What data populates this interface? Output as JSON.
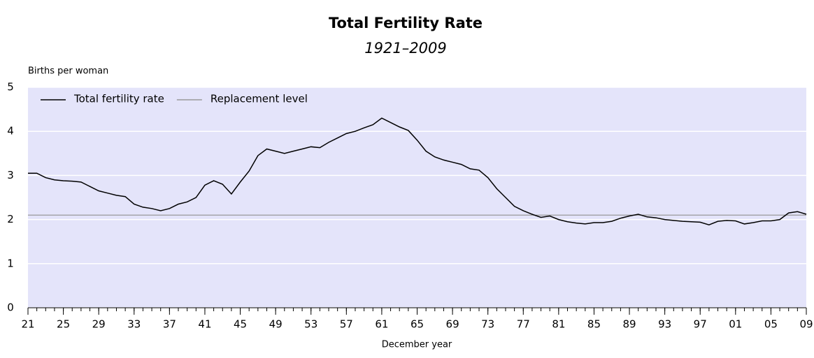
{
  "chart_data": {
    "type": "line",
    "title": "Total Fertility Rate",
    "subtitle": "1921–2009",
    "y_label": "Births per woman",
    "x_label": "December year",
    "x": [
      1921,
      1922,
      1923,
      1924,
      1925,
      1926,
      1927,
      1928,
      1929,
      1930,
      1931,
      1932,
      1933,
      1934,
      1935,
      1936,
      1937,
      1938,
      1939,
      1940,
      1941,
      1942,
      1943,
      1944,
      1945,
      1946,
      1947,
      1948,
      1949,
      1950,
      1951,
      1952,
      1953,
      1954,
      1955,
      1956,
      1957,
      1958,
      1959,
      1960,
      1961,
      1962,
      1963,
      1964,
      1965,
      1966,
      1967,
      1968,
      1969,
      1970,
      1971,
      1972,
      1973,
      1974,
      1975,
      1976,
      1977,
      1978,
      1979,
      1980,
      1981,
      1982,
      1983,
      1984,
      1985,
      1986,
      1987,
      1988,
      1989,
      1990,
      1991,
      1992,
      1993,
      1994,
      1995,
      1996,
      1997,
      1998,
      1999,
      2000,
      2001,
      2002,
      2003,
      2004,
      2005,
      2006,
      2007,
      2008,
      2009
    ],
    "series": [
      {
        "name": "Total fertility rate",
        "color": "#000000",
        "values": [
          3.05,
          3.05,
          2.95,
          2.9,
          2.88,
          2.87,
          2.85,
          2.75,
          2.65,
          2.6,
          2.55,
          2.52,
          2.35,
          2.28,
          2.25,
          2.2,
          2.25,
          2.35,
          2.4,
          2.5,
          2.78,
          2.88,
          2.8,
          2.58,
          2.85,
          3.1,
          3.45,
          3.6,
          3.55,
          3.5,
          3.55,
          3.6,
          3.65,
          3.63,
          3.75,
          3.85,
          3.95,
          4.0,
          4.08,
          4.15,
          4.3,
          4.2,
          4.1,
          4.02,
          3.8,
          3.55,
          3.42,
          3.35,
          3.3,
          3.25,
          3.15,
          3.12,
          2.95,
          2.7,
          2.5,
          2.3,
          2.2,
          2.12,
          2.05,
          2.08,
          2.0,
          1.95,
          1.92,
          1.9,
          1.93,
          1.93,
          1.96,
          2.03,
          2.08,
          2.12,
          2.06,
          2.04,
          2.0,
          1.98,
          1.96,
          1.95,
          1.94,
          1.88,
          1.96,
          1.98,
          1.97,
          1.9,
          1.93,
          1.97,
          1.97,
          2.0,
          2.15,
          2.18,
          2.12
        ]
      },
      {
        "name": "Replacement level",
        "color": "#999999",
        "x": [
          1921,
          2009
        ],
        "values": [
          2.1,
          2.1
        ]
      }
    ],
    "xlim": [
      1921,
      2009
    ],
    "xticks": [
      {
        "value": 1921,
        "label": "21"
      },
      {
        "value": 1925,
        "label": "25"
      },
      {
        "value": 1929,
        "label": "29"
      },
      {
        "value": 1933,
        "label": "33"
      },
      {
        "value": 1937,
        "label": "37"
      },
      {
        "value": 1941,
        "label": "41"
      },
      {
        "value": 1945,
        "label": "45"
      },
      {
        "value": 1949,
        "label": "49"
      },
      {
        "value": 1953,
        "label": "53"
      },
      {
        "value": 1957,
        "label": "57"
      },
      {
        "value": 1961,
        "label": "61"
      },
      {
        "value": 1965,
        "label": "65"
      },
      {
        "value": 1969,
        "label": "69"
      },
      {
        "value": 1973,
        "label": "73"
      },
      {
        "value": 1977,
        "label": "77"
      },
      {
        "value": 1981,
        "label": "81"
      },
      {
        "value": 1985,
        "label": "85"
      },
      {
        "value": 1989,
        "label": "89"
      },
      {
        "value": 1993,
        "label": "93"
      },
      {
        "value": 1997,
        "label": "97"
      },
      {
        "value": 2001,
        "label": "01"
      },
      {
        "value": 2005,
        "label": "05"
      },
      {
        "value": 2009,
        "label": "09"
      }
    ],
    "ylim": [
      0,
      5
    ],
    "yticks": [
      0,
      1,
      2,
      3,
      4,
      5
    ],
    "grid": true,
    "legend": "top-left"
  }
}
